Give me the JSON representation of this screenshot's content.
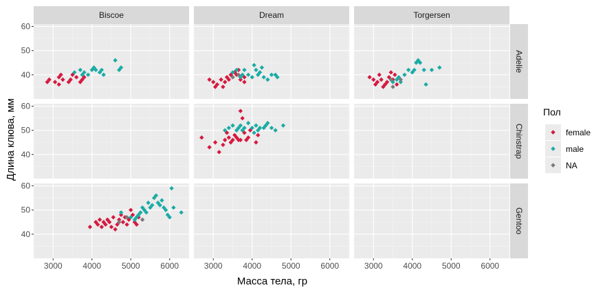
{
  "chart_data": {
    "type": "scatter",
    "facet_columns": [
      "Biscoe",
      "Dream",
      "Torgersen"
    ],
    "facet_rows": [
      "Adelie",
      "Chinstrap",
      "Gentoo"
    ],
    "xlabel": "Масса тела, гр",
    "ylabel": "Длина клюва, мм",
    "xlim": [
      2500,
      6500
    ],
    "ylim": [
      30,
      61
    ],
    "x_ticks": [
      3000,
      4000,
      5000,
      6000
    ],
    "y_ticks": [
      40,
      50,
      60
    ],
    "grid": true,
    "legend": {
      "title": "Пол",
      "position": "right",
      "entries": [
        {
          "label": "female",
          "color": "#d6193f"
        },
        {
          "label": "male",
          "color": "#1aaba5"
        },
        {
          "label": "NA",
          "color": "#7a7a7a"
        }
      ]
    },
    "series": [
      {
        "row": 0,
        "col": 0,
        "sex": "female",
        "points": [
          [
            2850,
            37
          ],
          [
            2900,
            38
          ],
          [
            3050,
            37
          ],
          [
            3150,
            36
          ],
          [
            3150,
            39
          ],
          [
            3200,
            40
          ],
          [
            3250,
            38
          ],
          [
            3400,
            37
          ],
          [
            3450,
            38
          ],
          [
            3500,
            40
          ],
          [
            3600,
            39
          ],
          [
            3700,
            37
          ],
          [
            3750,
            38
          ],
          [
            3800,
            39
          ]
        ]
      },
      {
        "row": 0,
        "col": 0,
        "sex": "male",
        "points": [
          [
            3550,
            41
          ],
          [
            3700,
            42
          ],
          [
            3750,
            40
          ],
          [
            3800,
            41
          ],
          [
            3900,
            40
          ],
          [
            4000,
            42
          ],
          [
            4050,
            43
          ],
          [
            4100,
            42
          ],
          [
            4200,
            41
          ],
          [
            4250,
            42
          ],
          [
            4300,
            40
          ],
          [
            4600,
            46
          ],
          [
            4700,
            42
          ],
          [
            4750,
            43
          ]
        ]
      },
      {
        "row": 0,
        "col": 1,
        "sex": "female",
        "points": [
          [
            2900,
            38
          ],
          [
            3000,
            37
          ],
          [
            3050,
            35
          ],
          [
            3100,
            36
          ],
          [
            3200,
            38
          ],
          [
            3250,
            35
          ],
          [
            3300,
            37
          ],
          [
            3350,
            39
          ],
          [
            3400,
            38
          ],
          [
            3450,
            40
          ],
          [
            3500,
            39
          ],
          [
            3550,
            41
          ],
          [
            3600,
            40
          ],
          [
            3650,
            42
          ],
          [
            3700,
            38
          ],
          [
            3800,
            39
          ],
          [
            3800,
            37
          ]
        ]
      },
      {
        "row": 0,
        "col": 1,
        "sex": "male",
        "points": [
          [
            3500,
            41
          ],
          [
            3600,
            42
          ],
          [
            3700,
            39
          ],
          [
            3750,
            40
          ],
          [
            3800,
            42
          ],
          [
            3900,
            40
          ],
          [
            4000,
            39
          ],
          [
            4050,
            44
          ],
          [
            4100,
            42
          ],
          [
            4150,
            40
          ],
          [
            4200,
            41
          ],
          [
            4250,
            43
          ],
          [
            4300,
            39
          ],
          [
            4400,
            38
          ],
          [
            4500,
            40
          ],
          [
            4600,
            40
          ],
          [
            4650,
            39
          ]
        ]
      },
      {
        "row": 0,
        "col": 1,
        "sex": "NA",
        "points": [
          [
            3500,
            39
          ],
          [
            3650,
            40
          ]
        ]
      },
      {
        "row": 0,
        "col": 2,
        "sex": "female",
        "points": [
          [
            2900,
            39
          ],
          [
            3000,
            38
          ],
          [
            3050,
            36
          ],
          [
            3100,
            37
          ],
          [
            3150,
            40
          ],
          [
            3200,
            38
          ],
          [
            3250,
            35
          ],
          [
            3300,
            36
          ],
          [
            3350,
            37
          ],
          [
            3400,
            39
          ],
          [
            3450,
            41
          ],
          [
            3500,
            38
          ],
          [
            3550,
            40
          ],
          [
            3600,
            36
          ]
        ]
      },
      {
        "row": 0,
        "col": 2,
        "sex": "male",
        "points": [
          [
            3500,
            37
          ],
          [
            3600,
            38
          ],
          [
            3650,
            39
          ],
          [
            3700,
            37
          ],
          [
            3800,
            40
          ],
          [
            3900,
            42
          ],
          [
            4000,
            41
          ],
          [
            4050,
            42
          ],
          [
            4100,
            45
          ],
          [
            4150,
            46
          ],
          [
            4200,
            45
          ],
          [
            4300,
            42
          ],
          [
            4350,
            36
          ],
          [
            4500,
            42
          ],
          [
            4700,
            43
          ]
        ]
      },
      {
        "row": 0,
        "col": 2,
        "sex": "NA",
        "points": [
          [
            3450,
            38
          ],
          [
            3500,
            35
          ],
          [
            3700,
            38
          ]
        ]
      },
      {
        "row": 1,
        "col": 1,
        "sex": "female",
        "points": [
          [
            2700,
            47
          ],
          [
            2900,
            43
          ],
          [
            3050,
            45
          ],
          [
            3150,
            41
          ],
          [
            3250,
            44
          ],
          [
            3300,
            46
          ],
          [
            3350,
            49
          ],
          [
            3400,
            47
          ],
          [
            3450,
            45
          ],
          [
            3500,
            46
          ],
          [
            3550,
            48
          ],
          [
            3600,
            47
          ],
          [
            3650,
            46
          ],
          [
            3700,
            58
          ],
          [
            3700,
            46
          ],
          [
            3750,
            55
          ],
          [
            3800,
            49
          ],
          [
            3850,
            46
          ],
          [
            3900,
            47
          ],
          [
            3950,
            50
          ],
          [
            4100,
            45
          ],
          [
            4150,
            48
          ]
        ]
      },
      {
        "row": 1,
        "col": 1,
        "sex": "male",
        "points": [
          [
            3300,
            50
          ],
          [
            3400,
            51
          ],
          [
            3500,
            52
          ],
          [
            3600,
            50
          ],
          [
            3650,
            51
          ],
          [
            3700,
            52
          ],
          [
            3750,
            50
          ],
          [
            3800,
            51
          ],
          [
            3900,
            53
          ],
          [
            4000,
            51
          ],
          [
            4050,
            49
          ],
          [
            4100,
            52
          ],
          [
            4150,
            50
          ],
          [
            4200,
            51
          ],
          [
            4300,
            51
          ],
          [
            4350,
            52
          ],
          [
            4400,
            53
          ],
          [
            4500,
            51
          ],
          [
            4600,
            50
          ],
          [
            4800,
            52
          ]
        ]
      },
      {
        "row": 2,
        "col": 0,
        "sex": "female",
        "points": [
          [
            3950,
            43
          ],
          [
            4100,
            45
          ],
          [
            4150,
            44
          ],
          [
            4200,
            46
          ],
          [
            4250,
            43
          ],
          [
            4300,
            45
          ],
          [
            4350,
            44
          ],
          [
            4400,
            46
          ],
          [
            4450,
            45
          ],
          [
            4500,
            43
          ],
          [
            4550,
            47
          ],
          [
            4600,
            42
          ],
          [
            4650,
            44
          ],
          [
            4700,
            46
          ],
          [
            4750,
            48
          ],
          [
            4800,
            45
          ],
          [
            4850,
            47
          ],
          [
            4900,
            44
          ],
          [
            4950,
            46
          ],
          [
            5000,
            50
          ],
          [
            5050,
            48
          ],
          [
            5100,
            45
          ],
          [
            5150,
            44
          ],
          [
            5200,
            47
          ]
        ]
      },
      {
        "row": 2,
        "col": 0,
        "sex": "male",
        "points": [
          [
            4750,
            49
          ],
          [
            5000,
            47
          ],
          [
            5100,
            46
          ],
          [
            5150,
            47
          ],
          [
            5200,
            48
          ],
          [
            5250,
            49
          ],
          [
            5300,
            51
          ],
          [
            5350,
            50
          ],
          [
            5400,
            49
          ],
          [
            5450,
            53
          ],
          [
            5500,
            51
          ],
          [
            5550,
            52
          ],
          [
            5600,
            55
          ],
          [
            5650,
            56
          ],
          [
            5700,
            53
          ],
          [
            5750,
            52
          ],
          [
            5800,
            54
          ],
          [
            5850,
            51
          ],
          [
            5900,
            50
          ],
          [
            5950,
            48
          ],
          [
            6000,
            47
          ],
          [
            6050,
            59
          ],
          [
            6100,
            51
          ],
          [
            6300,
            49
          ]
        ]
      },
      {
        "row": 2,
        "col": 0,
        "sex": "NA",
        "points": [
          [
            4700,
            45
          ],
          [
            4900,
            47
          ],
          [
            5300,
            46
          ]
        ]
      }
    ]
  }
}
